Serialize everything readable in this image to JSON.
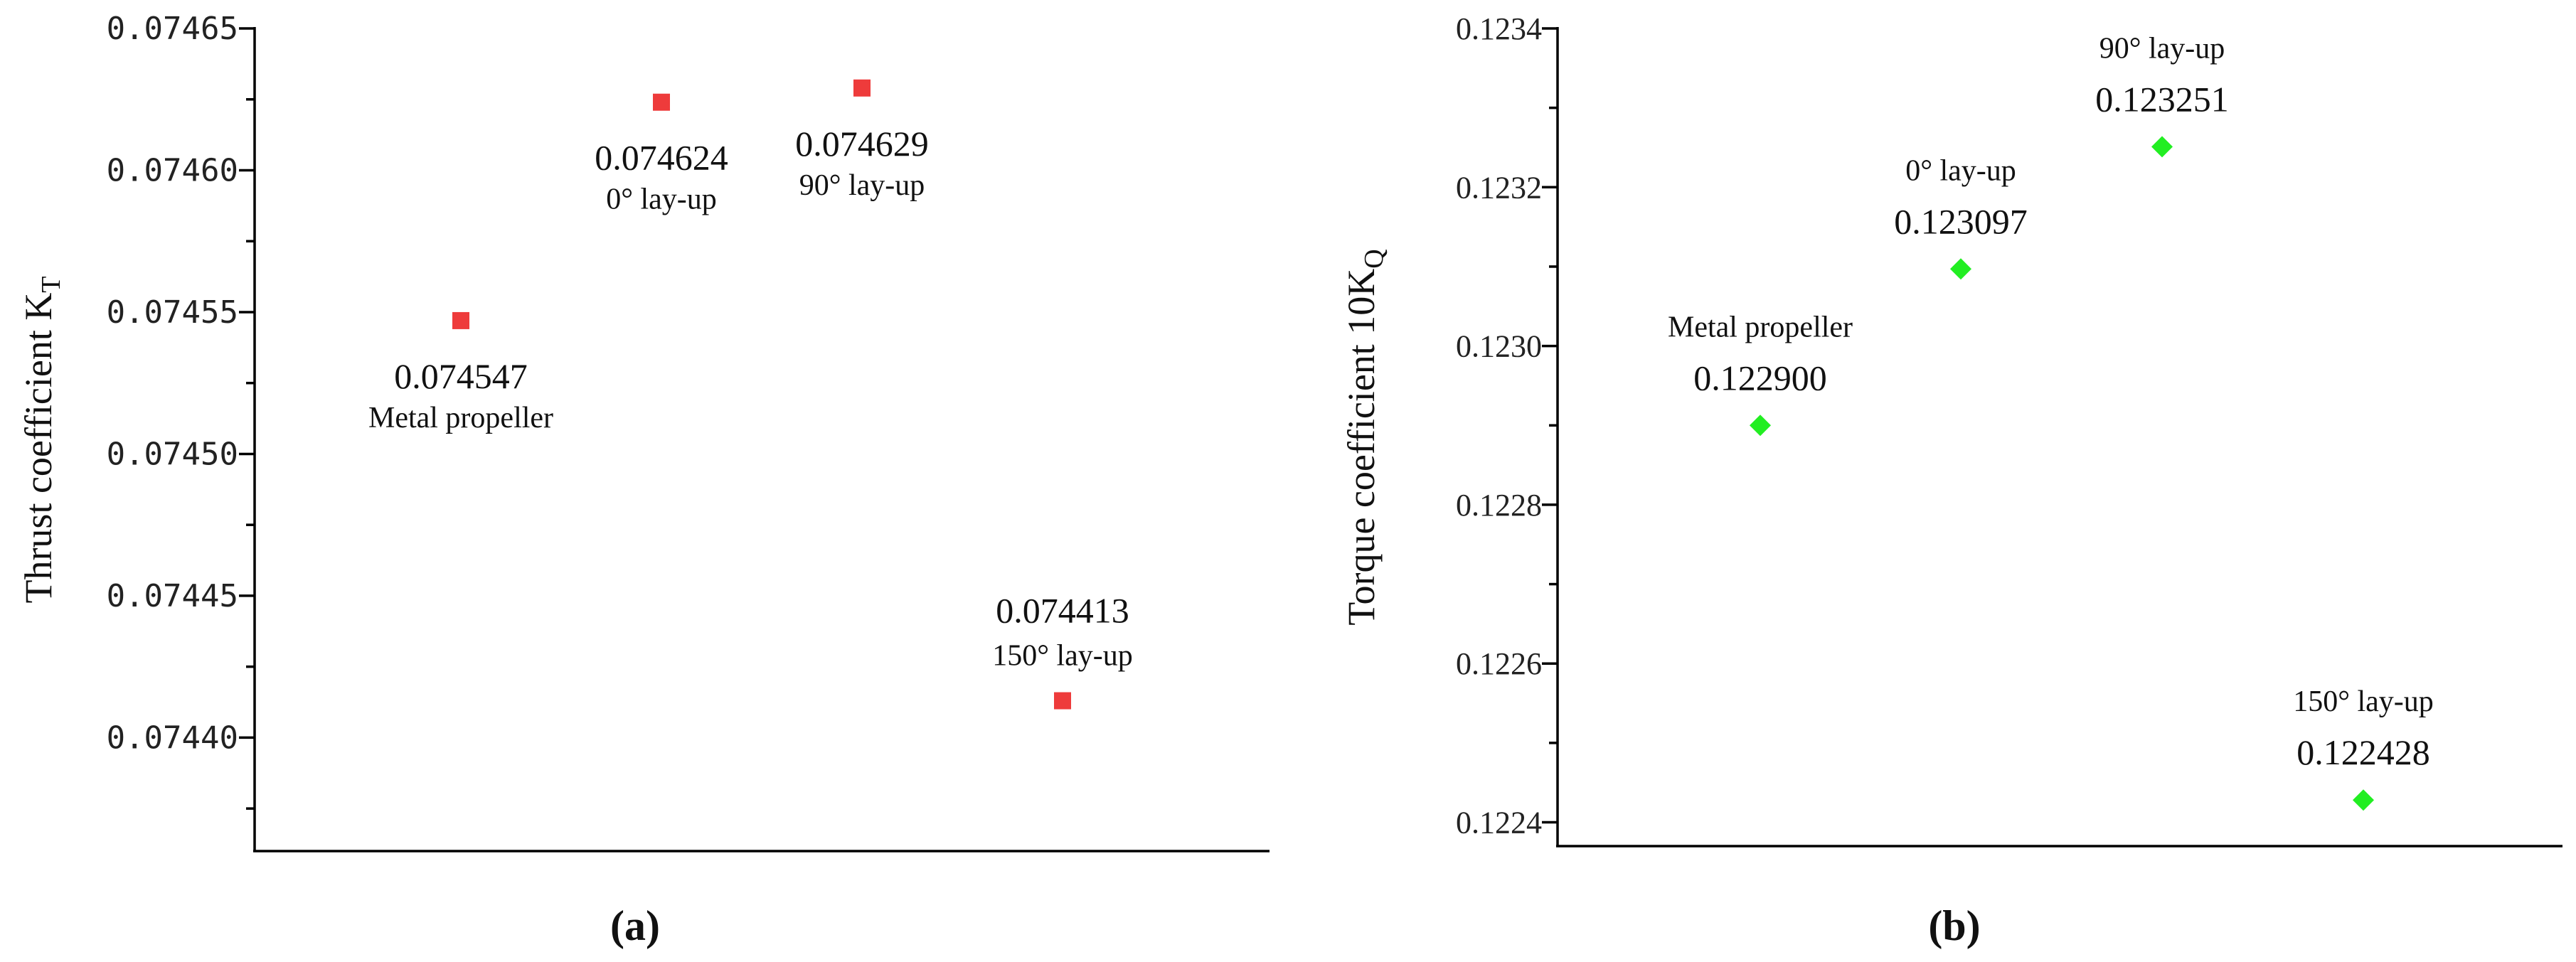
{
  "chart_data": [
    {
      "type": "scatter",
      "panel_label": "(a)",
      "ylabel_main": "Thrust coefficient K",
      "ylabel_sub": "T",
      "yticks": [
        "0.07440",
        "0.07445",
        "0.07450",
        "0.07455",
        "0.07460",
        "0.07465"
      ],
      "ylim": [
        0.07436,
        0.07465
      ],
      "marker": "square",
      "color": "#ee3b3b",
      "points": [
        {
          "x": 1,
          "y": 0.074547,
          "value_label": "0.074547",
          "category": "Metal propeller",
          "label_position": "below"
        },
        {
          "x": 2,
          "y": 0.074624,
          "value_label": "0.074624",
          "category": "0° lay-up",
          "label_position": "below"
        },
        {
          "x": 3,
          "y": 0.074629,
          "value_label": "0.074629",
          "category": "90° lay-up",
          "label_position": "below"
        },
        {
          "x": 4,
          "y": 0.074413,
          "value_label": "0.074413",
          "category": "150° lay-up",
          "label_position": "above"
        }
      ]
    },
    {
      "type": "scatter",
      "panel_label": "(b)",
      "ylabel_main": "Torque coefficient 10K",
      "ylabel_sub": "Q",
      "yticks": [
        "0.1224",
        "0.1226",
        "0.1228",
        "0.1230",
        "0.1232",
        "0.1234"
      ],
      "ylim": [
        0.12237,
        0.1234
      ],
      "marker": "diamond",
      "color": "#22ee22",
      "points": [
        {
          "x": 1,
          "y": 0.1229,
          "value_label": "0.122900",
          "category": "Metal propeller",
          "label_position": "above"
        },
        {
          "x": 2,
          "y": 0.123097,
          "value_label": "0.123097",
          "category": "0° lay-up",
          "label_position": "above"
        },
        {
          "x": 3,
          "y": 0.123251,
          "value_label": "0.123251",
          "category": "90° lay-up",
          "label_position": "above"
        },
        {
          "x": 4,
          "y": 0.122428,
          "value_label": "0.122428",
          "category": "150° lay-up",
          "label_position": "above"
        }
      ]
    }
  ]
}
